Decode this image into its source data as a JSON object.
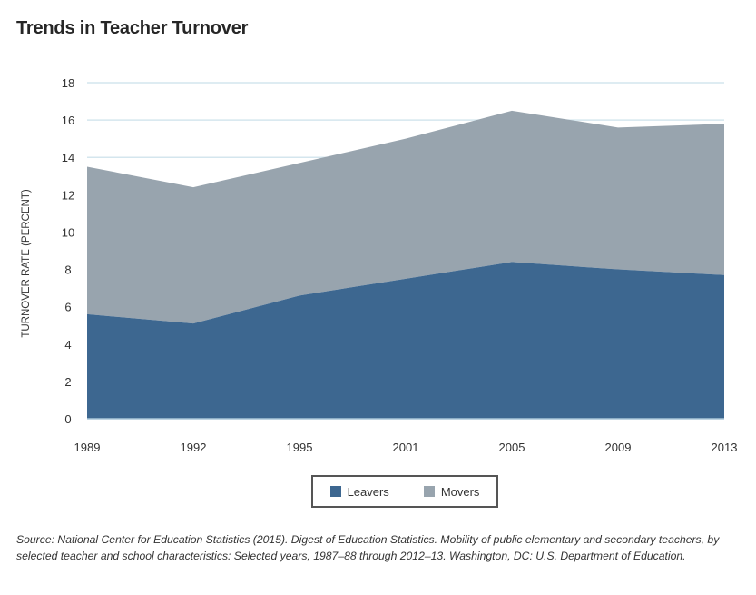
{
  "title": "Trends in Teacher Turnover",
  "y_axis_label": "TURNOVER RATE (PERCENT)",
  "legend": {
    "leavers_label": "Leavers",
    "movers_label": "Movers"
  },
  "colors": {
    "leavers": "#3d6790",
    "movers": "#98a4ae",
    "gridline": "#d4e6ee"
  },
  "source": "Source: National Center for Education Statistics (2015). Digest of Education Statistics. Mobility of public elementary and secondary teachers, by selected teacher and school characteristics: Selected years, 1987–88 through 2012–13. Washington, DC: U.S. Department of Education.",
  "chart_data": {
    "type": "area",
    "stacked": true,
    "title": "Trends in Teacher Turnover",
    "xlabel": "",
    "ylabel": "TURNOVER RATE (PERCENT)",
    "categories": [
      "1989",
      "1992",
      "1995",
      "2001",
      "2005",
      "2009",
      "2013"
    ],
    "series": [
      {
        "name": "Leavers",
        "values": [
          5.6,
          5.1,
          6.6,
          7.5,
          8.4,
          8.0,
          7.7
        ]
      },
      {
        "name": "Movers",
        "values": [
          7.9,
          7.3,
          7.1,
          7.5,
          8.1,
          7.6,
          8.1
        ]
      }
    ],
    "totals": [
      13.5,
      12.4,
      13.7,
      15.0,
      16.5,
      15.6,
      15.8
    ],
    "ylim": [
      0,
      18
    ],
    "yticks": [
      0,
      2,
      4,
      6,
      8,
      10,
      12,
      14,
      16,
      18
    ],
    "grid": "horizontal",
    "legend_position": "bottom"
  }
}
